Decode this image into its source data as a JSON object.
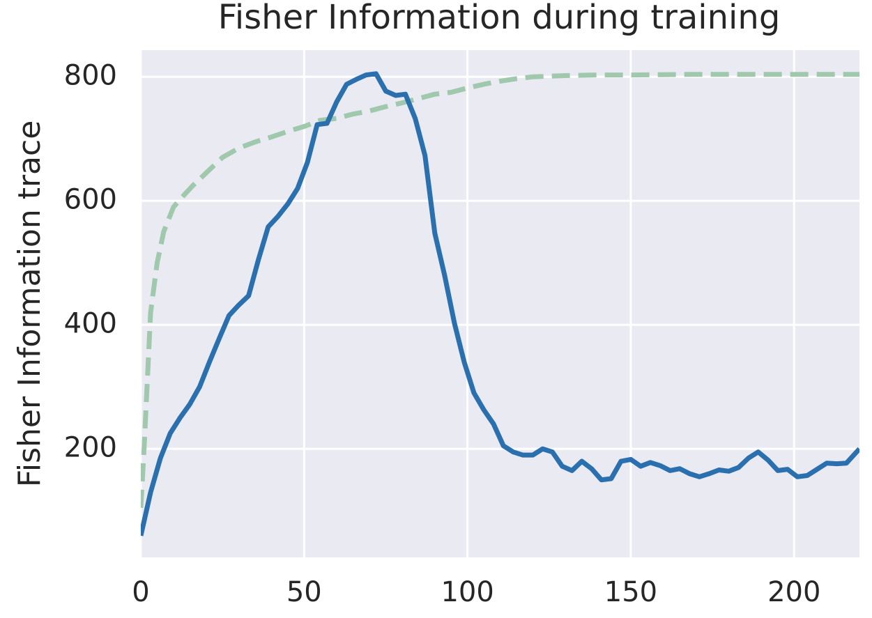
{
  "chart_data": {
    "type": "line",
    "title": "Fisher Information during training",
    "ylabel": "Fisher Information trace",
    "xlim": [
      0,
      220
    ],
    "ylim": [
      25,
      843
    ],
    "xticks": [
      0,
      50,
      100,
      150,
      200
    ],
    "yticks": [
      200,
      400,
      600,
      800
    ],
    "grid": true,
    "series": [
      {
        "color": "#2b70ae",
        "linestyle": "solid",
        "x": [
          0,
          3,
          6,
          9,
          12,
          15,
          18,
          21,
          24,
          27,
          30,
          33,
          36,
          39,
          42,
          45,
          48,
          51,
          54,
          57,
          60,
          63,
          66,
          69,
          72,
          75,
          78,
          81,
          84,
          87,
          90,
          93,
          96,
          99,
          102,
          105,
          108,
          111,
          114,
          117,
          120,
          123,
          126,
          129,
          132,
          135,
          138,
          141,
          144,
          147,
          150,
          153,
          156,
          159,
          162,
          165,
          168,
          171,
          174,
          177,
          180,
          183,
          186,
          189,
          192,
          195,
          198,
          201,
          204,
          207,
          210,
          213,
          216,
          220
        ],
        "values": [
          60,
          130,
          185,
          225,
          250,
          272,
          300,
          340,
          378,
          415,
          432,
          447,
          505,
          558,
          575,
          595,
          620,
          662,
          723,
          725,
          760,
          788,
          796,
          803,
          805,
          777,
          770,
          772,
          733,
          673,
          548,
          480,
          403,
          340,
          290,
          263,
          240,
          205,
          195,
          190,
          190,
          200,
          195,
          172,
          165,
          180,
          168,
          150,
          152,
          180,
          183,
          172,
          178,
          173,
          165,
          168,
          160,
          155,
          160,
          166,
          164,
          170,
          185,
          195,
          182,
          165,
          167,
          155,
          157,
          167,
          177,
          176,
          177,
          200
        ]
      },
      {
        "color": "#9fc8ad",
        "linestyle": "dashed",
        "x": [
          0,
          1,
          2,
          3,
          5,
          7,
          10,
          13,
          16,
          20,
          25,
          30,
          35,
          40,
          45,
          50,
          55,
          60,
          65,
          70,
          75,
          80,
          85,
          90,
          95,
          100,
          105,
          110,
          115,
          120,
          130,
          140,
          150,
          170,
          190,
          200,
          220
        ],
        "values": [
          105,
          200,
          310,
          420,
          500,
          550,
          590,
          608,
          625,
          645,
          670,
          685,
          695,
          703,
          712,
          720,
          730,
          733,
          740,
          745,
          752,
          758,
          765,
          772,
          775,
          782,
          788,
          793,
          797,
          800,
          802,
          803,
          803,
          804,
          804,
          804,
          804
        ]
      }
    ]
  }
}
